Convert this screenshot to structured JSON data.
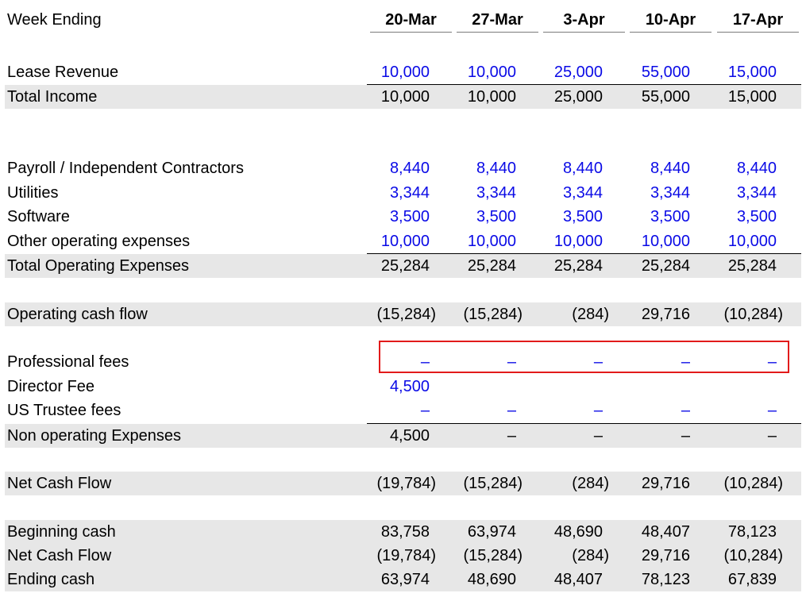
{
  "header": {
    "week_label": "Week Ending",
    "weeks": [
      "20-Mar",
      "27-Mar",
      "3-Apr",
      "10-Apr",
      "17-Apr"
    ]
  },
  "income": {
    "lease_revenue": {
      "label": "Lease Revenue",
      "values": [
        "10,000",
        "10,000",
        "25,000",
        "55,000",
        "15,000"
      ]
    },
    "total_income": {
      "label": "Total Income",
      "values": [
        "10,000",
        "10,000",
        "25,000",
        "55,000",
        "15,000"
      ]
    }
  },
  "operating_expenses": {
    "payroll": {
      "label": "Payroll / Independent Contractors",
      "values": [
        "8,440",
        "8,440",
        "8,440",
        "8,440",
        "8,440"
      ]
    },
    "utilities": {
      "label": "Utilities",
      "values": [
        "3,344",
        "3,344",
        "3,344",
        "3,344",
        "3,344"
      ]
    },
    "software": {
      "label": "Software",
      "values": [
        "3,500",
        "3,500",
        "3,500",
        "3,500",
        "3,500"
      ]
    },
    "other": {
      "label": "Other operating expenses",
      "values": [
        "10,000",
        "10,000",
        "10,000",
        "10,000",
        "10,000"
      ]
    },
    "total": {
      "label": "Total Operating Expenses",
      "values": [
        "25,284",
        "25,284",
        "25,284",
        "25,284",
        "25,284"
      ]
    }
  },
  "operating_cash_flow": {
    "label": "Operating cash flow",
    "values": [
      "(15,284)",
      "(15,284)",
      "(284)",
      "29,716",
      "(10,284)"
    ]
  },
  "non_operating": {
    "professional_fees": {
      "label": "Professional fees",
      "values": [
        "–",
        "–",
        "–",
        "–",
        "–"
      ]
    },
    "director_fee": {
      "label": "Director Fee",
      "values": [
        "4,500",
        "",
        "",
        "",
        ""
      ]
    },
    "us_trustee_fees": {
      "label": "US Trustee fees",
      "values": [
        "–",
        "–",
        "–",
        "–",
        "–"
      ]
    },
    "total": {
      "label": "Non operating Expenses",
      "values": [
        "4,500",
        "–",
        "–",
        "–",
        "–"
      ]
    }
  },
  "net_cash_flow": {
    "label": "Net Cash Flow",
    "values": [
      "(19,784)",
      "(15,284)",
      "(284)",
      "29,716",
      "(10,284)"
    ]
  },
  "cash_summary": {
    "beginning": {
      "label": "Beginning cash",
      "values": [
        "83,758",
        "63,974",
        "48,690",
        "48,407",
        "78,123"
      ]
    },
    "net": {
      "label": "Net Cash Flow",
      "values": [
        "(19,784)",
        "(15,284)",
        "(284)",
        "29,716",
        "(10,284)"
      ]
    },
    "ending": {
      "label": "Ending cash",
      "values": [
        "63,974",
        "48,690",
        "48,407",
        "78,123",
        "67,839"
      ]
    }
  },
  "colors": {
    "input_blue": "#0a0ae6",
    "shade_gray": "#e7e7e7",
    "highlight_red": "#e21b1b"
  }
}
